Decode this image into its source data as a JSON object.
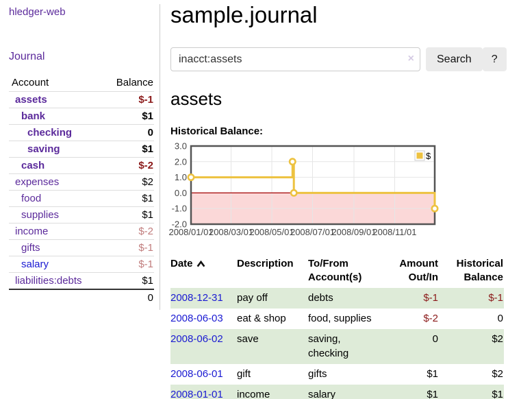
{
  "app": {
    "brand": "hledger-web"
  },
  "sidebar": {
    "journal_link": "Journal",
    "header": {
      "account": "Account",
      "balance": "Balance"
    },
    "accounts": [
      {
        "name": "assets",
        "balance": "$-1",
        "depth": 1,
        "bold": true,
        "negative": true
      },
      {
        "name": "bank",
        "balance": "$1",
        "depth": 2,
        "bold": true,
        "negative": false
      },
      {
        "name": "checking",
        "balance": "0",
        "depth": 3,
        "bold": true,
        "negative": false
      },
      {
        "name": "saving",
        "balance": "$1",
        "depth": 3,
        "bold": true,
        "negative": false
      },
      {
        "name": "cash",
        "balance": "$-2",
        "depth": 2,
        "bold": true,
        "negative": true
      },
      {
        "name": "expenses",
        "balance": "$2",
        "depth": 1,
        "bold": false,
        "negative": false
      },
      {
        "name": "food",
        "balance": "$1",
        "depth": 2,
        "bold": false,
        "negative": false
      },
      {
        "name": "supplies",
        "balance": "$1",
        "depth": 2,
        "bold": false,
        "negative": false
      },
      {
        "name": "income",
        "balance": "$-2",
        "depth": 1,
        "bold": false,
        "negative": true
      },
      {
        "name": "gifts",
        "balance": "$-1",
        "depth": 2,
        "bold": false,
        "negative": true
      },
      {
        "name": "salary",
        "balance": "$-1",
        "depth": 2,
        "bold": false,
        "negative": true
      },
      {
        "name": "liabilities:debts",
        "balance": "$1",
        "depth": 1,
        "bold": false,
        "negative": false
      }
    ],
    "total": "0"
  },
  "page": {
    "title": "sample.journal",
    "account_heading": "assets",
    "chart_title": "Historical Balance:"
  },
  "search": {
    "value": "inacct:assets",
    "clear_icon": "×",
    "search_button": "Search",
    "help_button": "?"
  },
  "chart_data": {
    "type": "line",
    "step": true,
    "title": "Historical Balance",
    "series": [
      {
        "name": "$",
        "color": "#edc240",
        "points": [
          [
            "2008-01-01",
            1.0
          ],
          [
            "2008-06-01",
            2.0
          ],
          [
            "2008-06-03",
            0.0
          ],
          [
            "2008-12-31",
            -1.0
          ]
        ]
      }
    ],
    "ylim": [
      -2.0,
      3.0
    ],
    "yticks": [
      3.0,
      2.0,
      1.0,
      0.0,
      -1.0,
      -2.0
    ],
    "xrange": [
      "2008-01-01",
      "2008-12-31"
    ],
    "xticks": [
      "2008/01/01",
      "2008/03/01",
      "2008/05/01",
      "2008/07/01",
      "2008/09/01",
      "2008/11/01"
    ],
    "legend_position": "top-right",
    "grid": true,
    "negative_region_color": "#fbd8d8",
    "zero_line_color": "#a40000"
  },
  "register": {
    "headers": {
      "date": "Date",
      "description": "Description",
      "tofrom": "To/From Account(s)",
      "amount": "Amount Out/In",
      "historical": "Historical Balance"
    },
    "rows": [
      {
        "date": "2008-12-31",
        "description": "pay off",
        "accounts": "debts",
        "amount": "$-1",
        "balance": "$-1"
      },
      {
        "date": "2008-06-03",
        "description": "eat & shop",
        "accounts": "food, supplies",
        "amount": "$-2",
        "balance": "0"
      },
      {
        "date": "2008-06-02",
        "description": "save",
        "accounts": "saving, checking",
        "amount": "0",
        "balance": "$2"
      },
      {
        "date": "2008-06-01",
        "description": "gift",
        "accounts": "gifts",
        "amount": "$1",
        "balance": "$2"
      },
      {
        "date": "2008-01-01",
        "description": "income",
        "accounts": "salary",
        "amount": "$1",
        "balance": "$1"
      }
    ]
  }
}
